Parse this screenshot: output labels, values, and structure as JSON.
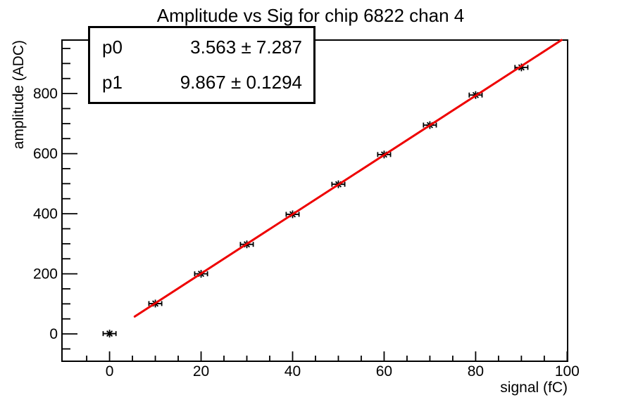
{
  "title": "Amplitude vs Sig for chip 6822 chan 4",
  "stats_box": {
    "rows": [
      {
        "param": "p0",
        "value": "3.563 ± 7.287"
      },
      {
        "param": "p1",
        "value": "9.867 ± 0.1294"
      }
    ]
  },
  "chart_data": {
    "type": "scatter",
    "title": "Amplitude vs Sig for chip 6822 chan 4",
    "xlabel": "signal (fC)",
    "ylabel": "amplitude (ADC)",
    "xlim": [
      -10.4,
      100.1
    ],
    "ylim": [
      -91,
      978
    ],
    "x_ticks": [
      0,
      20,
      40,
      60,
      80,
      100
    ],
    "x_minor_step": 5,
    "y_ticks": [
      0,
      200,
      400,
      600,
      800
    ],
    "y_minor_step": 50,
    "grid": false,
    "legend": null,
    "series": [
      {
        "name": "amplitude vs signal data",
        "marker": "asterisk",
        "color": "#000000",
        "x": [
          0,
          10,
          20,
          30,
          40,
          50,
          60,
          70,
          80,
          90
        ],
        "y": [
          1,
          101,
          200,
          298,
          398,
          498,
          597,
          695,
          795,
          887
        ],
        "xerr": 1.4
      }
    ],
    "fit": {
      "label": "p0 + p1*x",
      "p0": 3.563,
      "p1": 9.867,
      "x_start": 5.5,
      "x_end": 100,
      "color": "#ee0000"
    }
  },
  "colors": {
    "fit_line": "#ee0000",
    "marker": "#000000",
    "axis": "#000000",
    "background": "#ffffff"
  }
}
